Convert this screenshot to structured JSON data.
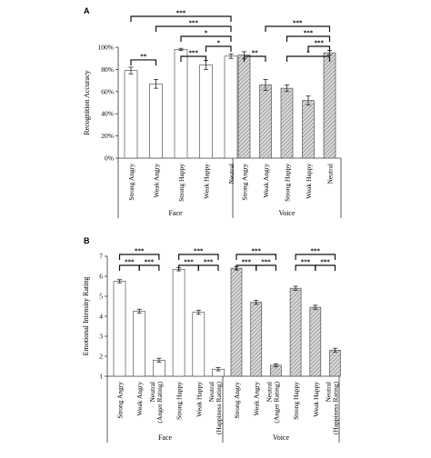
{
  "colors": {
    "face_fill": "#ffffff",
    "voice_fill": "hatched-gray",
    "stroke": "#333333"
  },
  "chart_data": [
    {
      "type": "bar",
      "panel": "A",
      "ylabel": "Recognition Accuracy",
      "ylim": [
        0,
        100
      ],
      "ytick_labels": [
        "0%",
        "20%",
        "40%",
        "60%",
        "80%",
        "100%"
      ],
      "groups": [
        {
          "name": "Face",
          "pattern": "plain",
          "categories": [
            "Strong Angry",
            "Weak Angry",
            "Strong Happy",
            "Weak Happy",
            "Neutral"
          ],
          "values": [
            79,
            67,
            98,
            84,
            92
          ],
          "errors": [
            3,
            4,
            1,
            4,
            2
          ]
        },
        {
          "name": "Voice",
          "pattern": "hatched",
          "categories": [
            "Strong Angry",
            "Weak Angry",
            "Strong Happy",
            "Weak Happy",
            "Neutral"
          ],
          "values": [
            93,
            66,
            63,
            52,
            95
          ],
          "errors": [
            3,
            5,
            3,
            4,
            2
          ]
        }
      ],
      "significance": [
        {
          "group": 0,
          "from": 0,
          "to": 1,
          "label": "**",
          "level": 1
        },
        {
          "group": 0,
          "from": 2,
          "to": 3,
          "label": "***",
          "level": 1
        },
        {
          "group": 0,
          "from": 3,
          "to": 4,
          "label": "*",
          "level": 2
        },
        {
          "group": 0,
          "from": 2,
          "to": 4,
          "label": "*",
          "level": 3
        },
        {
          "group": 0,
          "from": 1,
          "to": 4,
          "label": "***",
          "level": 4
        },
        {
          "group": 0,
          "from": 0,
          "to": 4,
          "label": "***",
          "level": 5
        },
        {
          "group": 1,
          "from": 0,
          "to": 1,
          "label": "**",
          "level": 1
        },
        {
          "group": 1,
          "from": 2,
          "to": 4,
          "label": "*",
          "level": 1
        },
        {
          "group": 1,
          "from": 3,
          "to": 4,
          "label": "***",
          "level": 2
        },
        {
          "group": 1,
          "from": 2,
          "to": 4,
          "label": "***",
          "level": 3
        },
        {
          "group": 1,
          "from": 1,
          "to": 4,
          "label": "***",
          "level": 4
        }
      ]
    },
    {
      "type": "bar",
      "panel": "B",
      "ylabel": "Emotional Intensity Rating",
      "ylim": [
        1,
        7
      ],
      "ytick_labels": [
        "1",
        "2",
        "3",
        "4",
        "5",
        "6",
        "7"
      ],
      "groups": [
        {
          "name": "Face",
          "pattern": "plain",
          "categories": [
            "Strong Angry",
            "Weak Angry",
            "Neutral\n(Anger Rating)",
            "Strong Happy",
            "Weak Happy",
            "Neutral\n(Happiness Rating)"
          ],
          "values": [
            5.75,
            4.25,
            1.8,
            6.35,
            4.2,
            1.35
          ],
          "errors": [
            0.08,
            0.1,
            0.1,
            0.08,
            0.1,
            0.08
          ]
        },
        {
          "name": "Voice",
          "pattern": "hatched",
          "categories": [
            "Strong Angry",
            "Weak Angry",
            "Neutral\n(Anger Rating)",
            "Strong Happy",
            "Weak Happy",
            "Neutral\n(Happiness Rating)"
          ],
          "values": [
            6.4,
            4.7,
            1.55,
            5.4,
            4.45,
            2.3
          ],
          "errors": [
            0.08,
            0.1,
            0.07,
            0.1,
            0.1,
            0.1
          ]
        }
      ],
      "significance": [
        {
          "group": 0,
          "from": 0,
          "to": 1,
          "label": "***",
          "level": 1
        },
        {
          "group": 0,
          "from": 1,
          "to": 2,
          "label": "***",
          "level": 1
        },
        {
          "group": 0,
          "from": 0,
          "to": 2,
          "label": "***",
          "level": 2
        },
        {
          "group": 0,
          "from": 3,
          "to": 4,
          "label": "***",
          "level": 1
        },
        {
          "group": 0,
          "from": 4,
          "to": 5,
          "label": "***",
          "level": 1
        },
        {
          "group": 0,
          "from": 3,
          "to": 5,
          "label": "***",
          "level": 2
        },
        {
          "group": 1,
          "from": 0,
          "to": 1,
          "label": "***",
          "level": 1
        },
        {
          "group": 1,
          "from": 1,
          "to": 2,
          "label": "***",
          "level": 1
        },
        {
          "group": 1,
          "from": 0,
          "to": 2,
          "label": "***",
          "level": 2
        },
        {
          "group": 1,
          "from": 3,
          "to": 4,
          "label": "***",
          "level": 1
        },
        {
          "group": 1,
          "from": 4,
          "to": 5,
          "label": "***",
          "level": 1
        },
        {
          "group": 1,
          "from": 3,
          "to": 5,
          "label": "***",
          "level": 2
        }
      ]
    }
  ]
}
